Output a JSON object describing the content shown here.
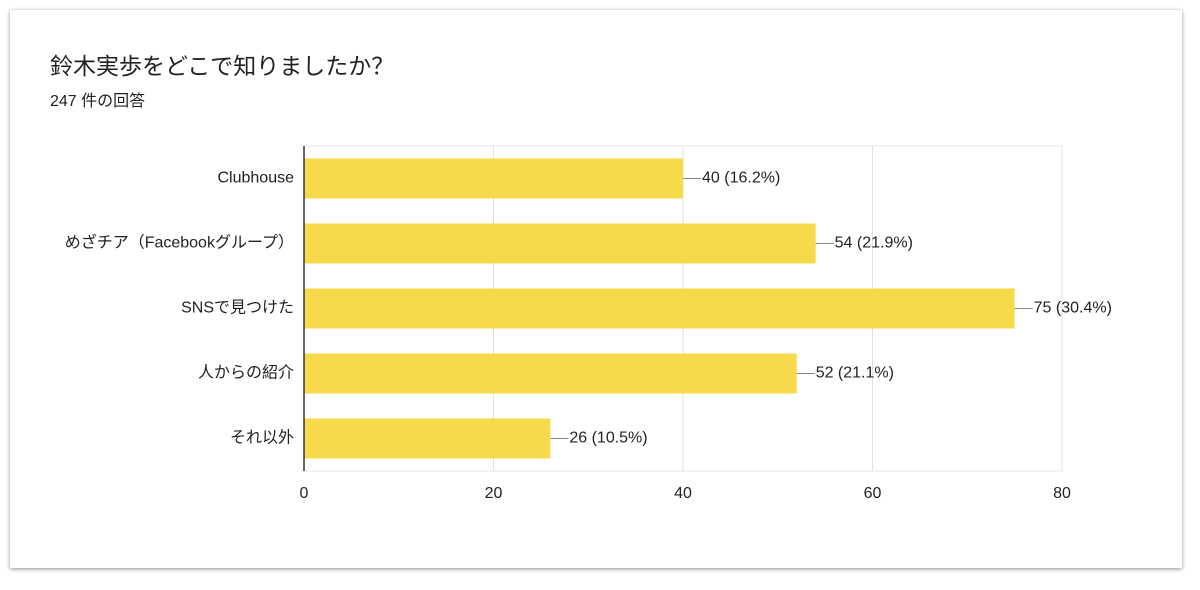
{
  "chart_data": {
    "type": "bar",
    "orientation": "horizontal",
    "title": "鈴木実歩をどこで知りましたか？",
    "subtitle": "247 件の回答",
    "categories": [
      "Clubhouse",
      "めざチア（Facebookグループ）",
      "SNSで見つけた",
      "人からの紹介",
      "それ以外"
    ],
    "values": [
      40,
      54,
      75,
      52,
      26
    ],
    "value_labels": [
      "40 (16.2%)",
      "54 (21.9%)",
      "75 (30.4%)",
      "52 (21.1%)",
      "26 (10.5%)"
    ],
    "color": "#f7d94c",
    "xlim": [
      0,
      80
    ],
    "xticks": [
      0,
      20,
      40,
      60,
      80
    ],
    "grid": true
  }
}
